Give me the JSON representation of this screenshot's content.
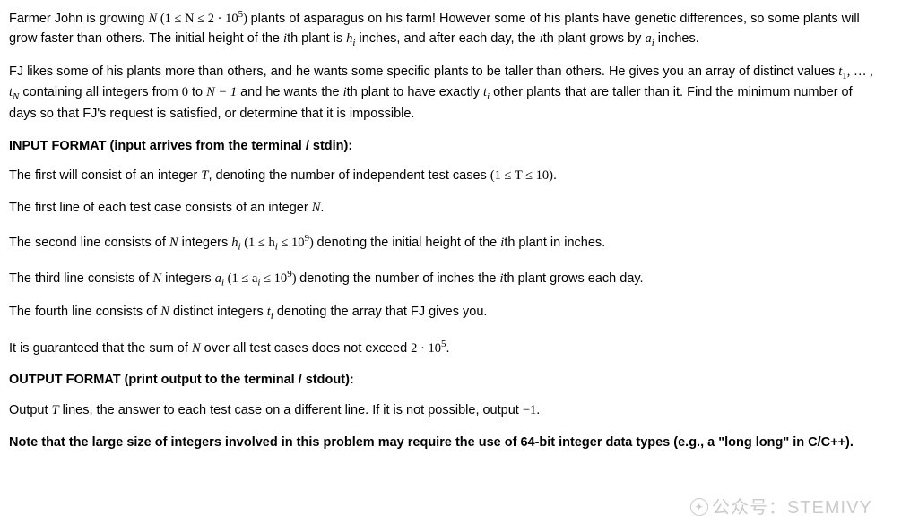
{
  "p1": {
    "a": "Farmer John is growing ",
    "N": "N",
    "range_open": " (",
    "range": "1 ≤ N ≤ 2 · 10",
    "range_exp": "5",
    "range_close": ") ",
    "b": "plants of asparagus on his farm! However some of his plants have genetic differences, so some plants will grow faster than others. The initial height of the ",
    "ith1": "i",
    "c": "th plant is ",
    "hi": "h",
    "hi_sub": "i",
    "d": " inches, and after each day, the ",
    "ith2": "i",
    "e": "th plant grows by ",
    "ai": "a",
    "ai_sub": "i",
    "f": " inches."
  },
  "p2": {
    "a": "FJ likes some of his plants more than others, and he wants some specific plants to be taller than others. He gives you an array of distinct values ",
    "t1": "t",
    "t1_sub": "1",
    "dots": ", … , ",
    "tN": "t",
    "tN_sub": "N",
    "b": " containing all integers from ",
    "zero": "0",
    "c": " to ",
    "Nm1": "N − 1",
    "d": " and he wants the ",
    "ith": "i",
    "e": "th plant to have exactly ",
    "ti": "t",
    "ti_sub": "i",
    "f": " other plants that are taller than it. Find the minimum number of days so that FJ's request is satisfied, or determine that it is impossible."
  },
  "input_header": "INPUT FORMAT (input arrives from the terminal / stdin):",
  "in1": {
    "a": "The first will consist of an integer ",
    "T": "T",
    "b": ", denoting the number of independent test cases ",
    "range": "(1 ≤ T ≤ 10)",
    "c": "."
  },
  "in2": {
    "a": "The first line of each test case consists of an integer ",
    "N": "N",
    "b": "."
  },
  "in3": {
    "a": "The second line consists of ",
    "N": "N",
    "b": " integers ",
    "hi": "h",
    "hi_sub": "i",
    "range_a": " (",
    "range": "1 ≤ h",
    "range_sub": "i",
    "range_b": " ≤ 10",
    "range_exp": "9",
    "range_c": ") ",
    "c": "denoting the initial height of the ",
    "ith": "i",
    "d": "th plant in inches."
  },
  "in4": {
    "a": "The third line consists of ",
    "N": "N",
    "b": " integers ",
    "ai": "a",
    "ai_sub": "i",
    "range_a": " (",
    "range": "1 ≤ a",
    "range_sub": "i",
    "range_b": " ≤ 10",
    "range_exp": "9",
    "range_c": ") ",
    "c": "denoting the number of inches the ",
    "ith": "i",
    "d": "th plant grows each day."
  },
  "in5": {
    "a": "The fourth line consists of ",
    "N": "N",
    "b": " distinct integers ",
    "ti": "t",
    "ti_sub": "i",
    "c": " denoting the array that FJ gives you."
  },
  "in6": {
    "a": "It is guaranteed that the sum of ",
    "N": "N",
    "b": " over all test cases does not exceed ",
    "lim": "2 · 10",
    "lim_exp": "5",
    "c": "."
  },
  "output_header": "OUTPUT FORMAT (print output to the terminal / stdout):",
  "out1": {
    "a": "Output ",
    "T": "T",
    "b": " lines, the answer to each test case on a different line. If it is not possible, output ",
    "neg1": "−1",
    "c": "."
  },
  "note": "Note that the large size of integers involved in this problem may require the use of 64-bit integer data types (e.g., a \"long long\" in C/C++).",
  "watermark": "公众号：STEMIVY"
}
